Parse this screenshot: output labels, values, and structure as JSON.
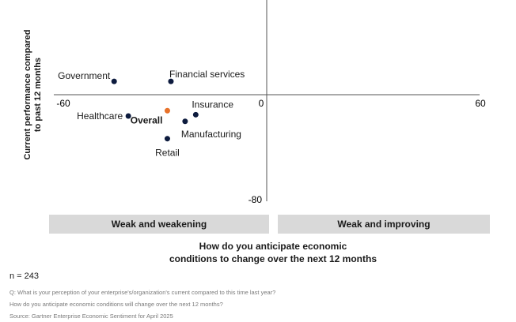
{
  "chart_data": {
    "type": "scatter",
    "xlabel": [
      "How do you anticipate economic",
      "conditions to change over the next 12 months"
    ],
    "ylabel": [
      "Current performance compared",
      "to past 12 months"
    ],
    "xlim": [
      -60,
      60
    ],
    "ylim_visible": [
      -80,
      10
    ],
    "x_ticks": [
      "-60",
      "0",
      "60"
    ],
    "y_ticks": [
      "0",
      "-80"
    ],
    "highlight_color": "#e8722a",
    "point_color": "#0d1b3e",
    "points": [
      {
        "label": "Government",
        "x": -43,
        "y": 10
      },
      {
        "label": "Financial services",
        "x": -27,
        "y": 10
      },
      {
        "label": "Healthcare",
        "x": -39,
        "y": -16
      },
      {
        "label": "Overall",
        "x": -28,
        "y": -12,
        "highlight": true
      },
      {
        "label": "Insurance",
        "x": -20,
        "y": -15
      },
      {
        "label": "Manufacturing",
        "x": -23,
        "y": -20
      },
      {
        "label": "Retail",
        "x": -28,
        "y": -33
      }
    ],
    "quadrants": [
      "Weak and weakening",
      "Weak and improving"
    ]
  },
  "footer": {
    "n": "n = 243",
    "q1": "Q: What is your perception of your enterprise's/organization's current compared to this time last year?",
    "q2": "How do you anticipate economic conditions will change over the next 12 months?",
    "source": "Source: Gartner Enterprise Economic Sentiment for April 2025"
  }
}
